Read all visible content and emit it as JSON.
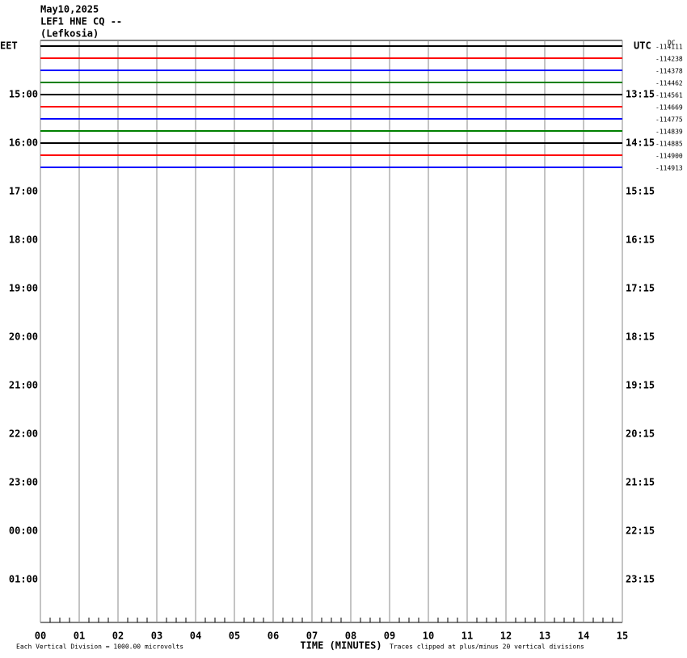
{
  "header": {
    "date": "May10,2025",
    "station": "LEF1 HNE CQ --",
    "location": "(Lefkosia)"
  },
  "left_axis": {
    "label": "EET",
    "ticks": [
      "15:00",
      "16:00",
      "17:00",
      "18:00",
      "19:00",
      "20:00",
      "21:00",
      "22:00",
      "23:00",
      "00:00",
      "01:00"
    ]
  },
  "right_axis": {
    "label": "UTC",
    "ticks": [
      "13:15",
      "14:15",
      "15:15",
      "16:15",
      "17:15",
      "18:15",
      "19:15",
      "20:15",
      "21:15",
      "22:15",
      "23:15"
    ]
  },
  "dc_label": "DC",
  "traces": [
    {
      "color": "#000000",
      "dc": "-114111"
    },
    {
      "color": "#ff0000",
      "dc": "-114238"
    },
    {
      "color": "#0000ff",
      "dc": "-114378"
    },
    {
      "color": "#008000",
      "dc": "-114462"
    },
    {
      "color": "#000000",
      "dc": "-114561"
    },
    {
      "color": "#ff0000",
      "dc": "-114669"
    },
    {
      "color": "#0000ff",
      "dc": "-114775"
    },
    {
      "color": "#008000",
      "dc": "-114839"
    },
    {
      "color": "#000000",
      "dc": "-114885"
    },
    {
      "color": "#ff0000",
      "dc": "-114900"
    },
    {
      "color": "#0000ff",
      "dc": "-114913"
    }
  ],
  "x_axis": {
    "title": "TIME (MINUTES)",
    "ticks": [
      "00",
      "01",
      "02",
      "03",
      "04",
      "05",
      "06",
      "07",
      "08",
      "09",
      "10",
      "11",
      "12",
      "13",
      "14",
      "15"
    ]
  },
  "notes": {
    "scale": "Each Vertical Division = 1000.00 microvolts",
    "clip": "Traces clipped at plus/minus 20 vertical divisions"
  }
}
